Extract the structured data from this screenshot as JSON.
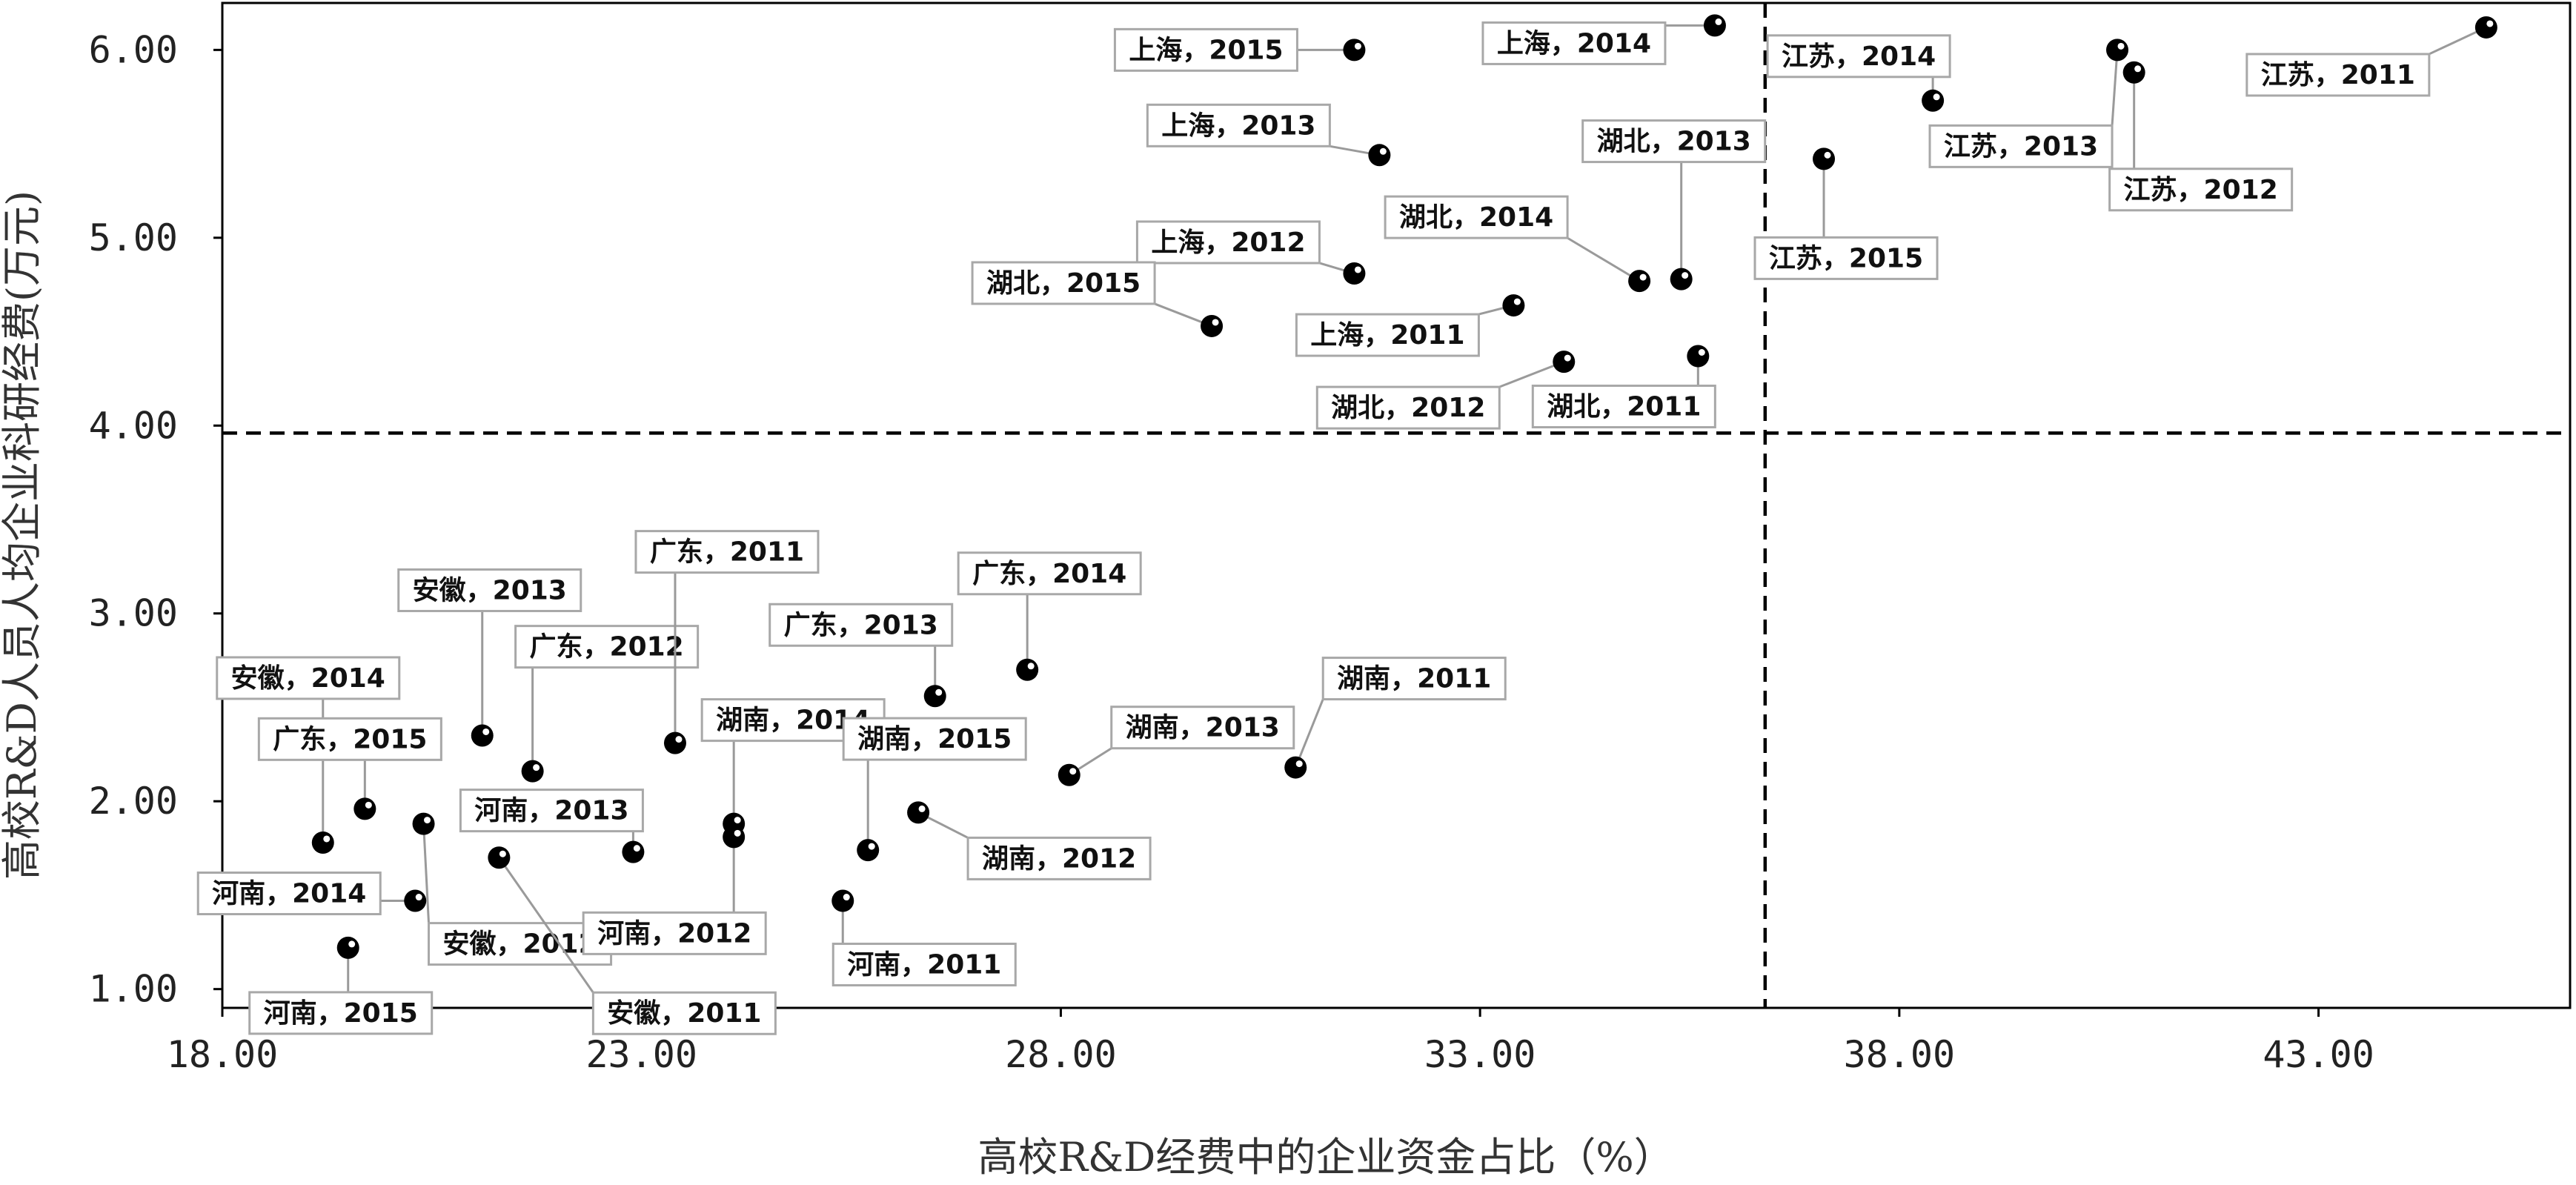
{
  "chart_data": {
    "type": "scatter",
    "title": "",
    "xlabel": "高校R&D经费中的企业资金占比（%）",
    "ylabel": "高校R&D人员人均企业科研经费(万元)",
    "xlim": [
      18,
      46
    ],
    "ylim": [
      0.9,
      6.25
    ],
    "xticks": [
      "18.00",
      "23.00",
      "28.00",
      "33.00",
      "38.00",
      "43.00"
    ],
    "yticks": [
      "1.00",
      "2.00",
      "3.00",
      "4.00",
      "5.00",
      "6.00"
    ],
    "reference_lines": {
      "x": 36.4,
      "y": 3.96,
      "style": "dashed"
    },
    "points": [
      {
        "label": "上海，2015",
        "x": 31.5,
        "y": 6.0
      },
      {
        "label": "上海，2014",
        "x": 35.8,
        "y": 6.13
      },
      {
        "label": "上海，2013",
        "x": 31.8,
        "y": 5.44
      },
      {
        "label": "上海，2012",
        "x": 31.5,
        "y": 4.81
      },
      {
        "label": "上海，2011",
        "x": 33.4,
        "y": 4.64
      },
      {
        "label": "湖北，2015",
        "x": 29.8,
        "y": 4.53
      },
      {
        "label": "湖北，2014",
        "x": 34.9,
        "y": 4.77
      },
      {
        "label": "湖北，2013",
        "x": 35.4,
        "y": 4.78
      },
      {
        "label": "湖北，2012",
        "x": 34.0,
        "y": 4.34
      },
      {
        "label": "湖北，2011",
        "x": 35.6,
        "y": 4.37
      },
      {
        "label": "江苏，2015",
        "x": 37.1,
        "y": 5.42
      },
      {
        "label": "江苏，2014",
        "x": 38.4,
        "y": 5.73
      },
      {
        "label": "江苏，2013",
        "x": 40.6,
        "y": 6.0
      },
      {
        "label": "江苏，2012",
        "x": 40.8,
        "y": 5.88
      },
      {
        "label": "江苏，2011",
        "x": 45.0,
        "y": 6.12
      },
      {
        "label": "安徽，2014",
        "x": 19.2,
        "y": 1.78
      },
      {
        "label": "安徽，2013",
        "x": 21.1,
        "y": 2.35
      },
      {
        "label": "安徽，2012",
        "x": 20.4,
        "y": 1.88
      },
      {
        "label": "安徽，2011",
        "x": 21.3,
        "y": 1.7
      },
      {
        "label": "广东，2015",
        "x": 19.7,
        "y": 1.96
      },
      {
        "label": "广东，2012",
        "x": 21.7,
        "y": 2.16
      },
      {
        "label": "广东，2011",
        "x": 23.4,
        "y": 2.31
      },
      {
        "label": "广东，2013",
        "x": 26.5,
        "y": 2.56
      },
      {
        "label": "广东，2014",
        "x": 27.6,
        "y": 2.7
      },
      {
        "label": "湖南，2014",
        "x": 24.1,
        "y": 1.88
      },
      {
        "label": "湖南，2015",
        "x": 25.7,
        "y": 1.74
      },
      {
        "label": "湖南，2013",
        "x": 28.1,
        "y": 2.14
      },
      {
        "label": "湖南，2012",
        "x": 26.3,
        "y": 1.94
      },
      {
        "label": "湖南，2011",
        "x": 30.8,
        "y": 2.18
      },
      {
        "label": "河南，2015",
        "x": 19.5,
        "y": 1.22
      },
      {
        "label": "河南，2014",
        "x": 20.3,
        "y": 1.47
      },
      {
        "label": "河南，2013",
        "x": 22.9,
        "y": 1.73
      },
      {
        "label": "河南，2012",
        "x": 24.1,
        "y": 1.81
      },
      {
        "label": "河南，2011",
        "x": 25.4,
        "y": 1.47
      }
    ]
  }
}
